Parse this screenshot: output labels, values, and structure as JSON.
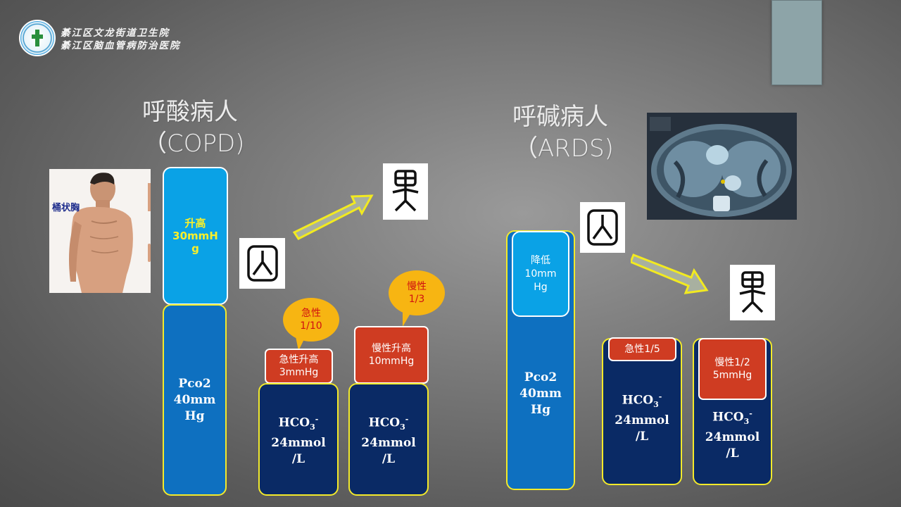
{
  "header": {
    "hospital_line1": "綦江区文龙街道卫生院",
    "hospital_line2": "綦江区脑血管病防治医院"
  },
  "left": {
    "heading_line1": "呼酸病人",
    "heading_line2": "（COPD)",
    "photo_label": "桶状胸",
    "rise_bar": {
      "line1": "升高",
      "line2": "30mmH",
      "line3": "g"
    },
    "pco2_bar": {
      "line1": "Pco2",
      "line2": "40mm",
      "line3": "Hg"
    },
    "acute_bubble": {
      "line1": "急性",
      "line2": "1/10"
    },
    "acute_box": {
      "line1": "急性升高",
      "line2": "3mmHg"
    },
    "chronic_bubble": {
      "line1": "慢性",
      "line2": "1/3"
    },
    "chronic_box": {
      "line1": "慢性升高",
      "line2": "10mmHg"
    },
    "hco3_acute": {
      "formula": "HCO",
      "sub": "3",
      "sup": "-",
      "line2": "24mmol",
      "line3": "/L"
    },
    "hco3_chronic": {
      "formula": "HCO",
      "sub": "3",
      "sup": "-",
      "line2": "24mmol",
      "line3": "/L"
    }
  },
  "right": {
    "heading_line1": "呼碱病人",
    "heading_line2": "（ARDS)",
    "fall_bar": {
      "line1": "降低",
      "line2": "10mm",
      "line3": "Hg"
    },
    "pco2_bar": {
      "line1": "Pco2",
      "line2": "40mm",
      "line3": "Hg"
    },
    "acute_box": {
      "line1": "急性1/5"
    },
    "chronic_box": {
      "line1": "慢性1/2",
      "line2": "5mmHg"
    },
    "hco3_acute": {
      "formula": "HCO",
      "sub": "3",
      "sup": "-",
      "line2": "24mmol",
      "line3": "/L"
    },
    "hco3_chronic": {
      "formula": "HCO",
      "sub": "3",
      "sup": "-",
      "line2": "24mmol",
      "line3": "/L"
    }
  },
  "colors": {
    "light_blue": "#0aa2e6",
    "mid_blue": "#0e70c0",
    "dark_blue": "#0a2a65",
    "red": "#cf3c22",
    "bubble": "#f7b512",
    "yellow_text": "#f9f02a",
    "yellow_border": "#f4ea2a"
  }
}
